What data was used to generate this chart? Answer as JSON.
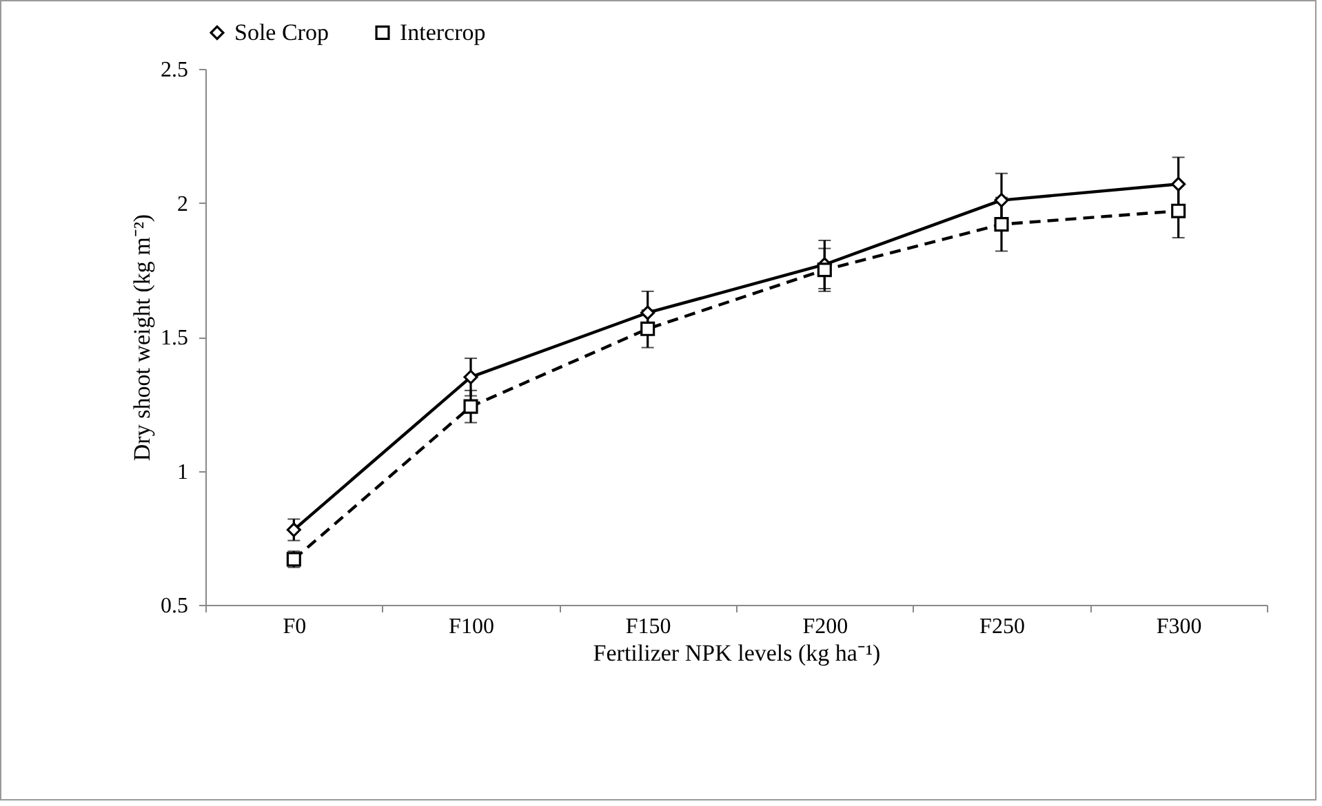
{
  "chart_data": {
    "type": "line",
    "xlabel": "Fertilizer NPK levels (kg ha⁻¹)",
    "ylabel": "Dry shoot weight (kg m⁻²)",
    "categories": [
      "F0",
      "F100",
      "F150",
      "F200",
      "F250",
      "F300"
    ],
    "ylim": [
      0.5,
      2.5
    ],
    "yticks": [
      0.5,
      {
        "value": 1,
        "label": "1"
      },
      1.5,
      {
        "value": 2,
        "label": "2"
      },
      2.5
    ],
    "grid": false,
    "legend": "top",
    "series": [
      {
        "name": "Sole Crop",
        "color": "#000000",
        "marker": "diamond",
        "line_style": "solid",
        "values": [
          0.78,
          1.35,
          1.59,
          1.77,
          2.01,
          2.07
        ],
        "errors": [
          0.04,
          0.07,
          0.08,
          0.09,
          0.1,
          0.1
        ]
      },
      {
        "name": "Intercrop",
        "color": "#000000",
        "marker": "square",
        "line_style": "dashed",
        "values": [
          0.67,
          1.24,
          1.53,
          1.75,
          1.92,
          1.97
        ],
        "errors": [
          0.03,
          0.06,
          0.07,
          0.08,
          0.1,
          0.1
        ]
      }
    ]
  }
}
